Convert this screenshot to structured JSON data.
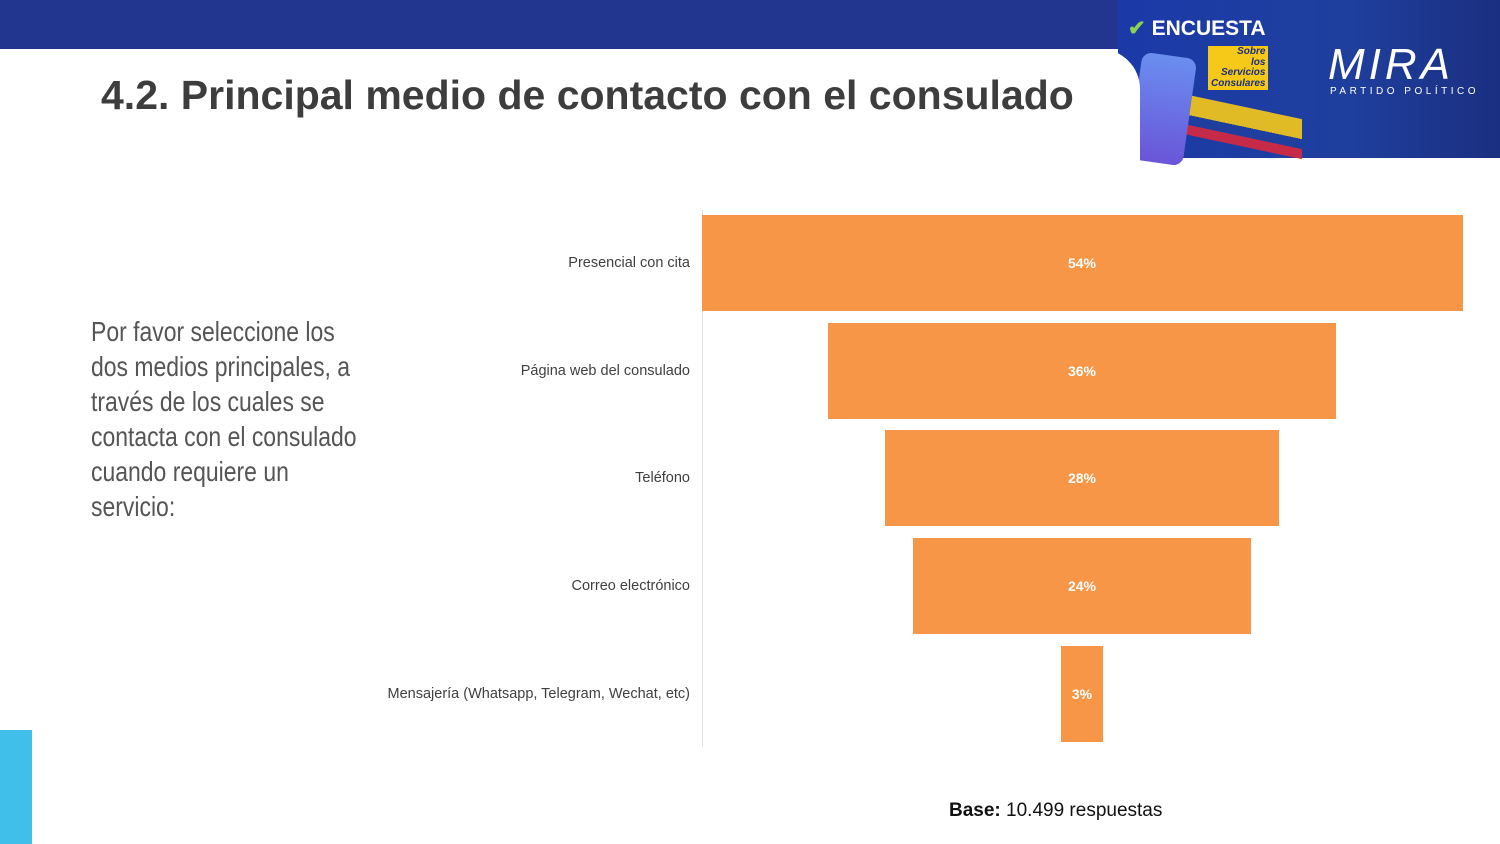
{
  "header": {
    "title": "4.2. Principal medio de contacto con el consulado"
  },
  "banner": {
    "encuesta": "ENCUESTA",
    "sobre": [
      "Sobre",
      "los",
      "Servicios",
      "Consulares"
    ],
    "logo": "MIRA",
    "logo_sub": "PARTIDO POLÍTICO"
  },
  "question": "Por favor seleccione los dos medios principales, a través de los cuales se contacta con el consulado cuando requiere un servicio:",
  "base": {
    "label": "Base:",
    "value": "10.499 respuestas"
  },
  "colors": {
    "bar": "#f79646",
    "header": "#22358f",
    "accent": "#3fbfe9"
  },
  "chart_data": {
    "type": "bar",
    "orientation": "funnel",
    "categories": [
      "Presencial con cita",
      "Página web del consulado",
      "Teléfono",
      "Correo electrónico",
      "Mensajería (Whatsapp, Telegram, Wechat, etc)"
    ],
    "values": [
      54,
      36,
      28,
      24,
      3
    ],
    "labels": [
      "54%",
      "36%",
      "28%",
      "24%",
      "3%"
    ],
    "unit": "%"
  }
}
